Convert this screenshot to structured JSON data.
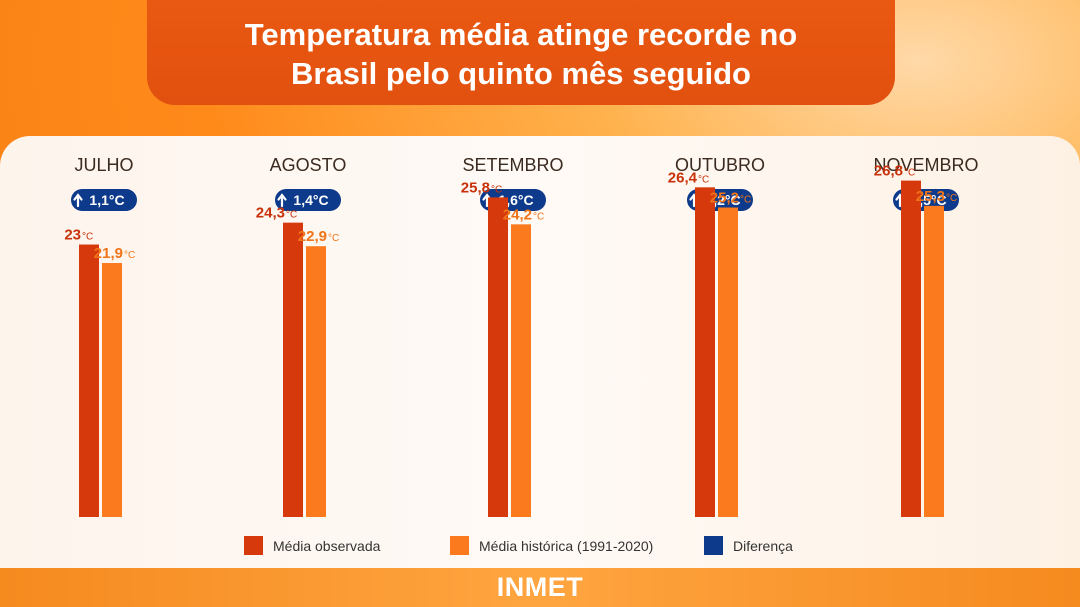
{
  "title": {
    "line1": "Temperatura média atinge recorde no",
    "line2": "Brasil pelo quinto mês seguido"
  },
  "source": "INMET",
  "legend": [
    {
      "label": "Média observada",
      "color": "#d63a0c"
    },
    {
      "label": "Média histórica (1991-2020)",
      "color": "#fb7a1e"
    },
    {
      "label": "Diferença",
      "color": "#0d3a8a"
    }
  ],
  "chart_data": {
    "type": "bar",
    "title": "Temperatura média atinge recorde no Brasil pelo quinto mês seguido",
    "categories": [
      "JULHO",
      "AGOSTO",
      "SETEMBRO",
      "OUTUBRO",
      "NOVEMBRO"
    ],
    "series": [
      {
        "name": "Média observada",
        "values": [
          23.0,
          24.3,
          25.8,
          26.4,
          26.8
        ],
        "labels": [
          "23",
          "24,3",
          "25,8",
          "26,4",
          "26,8"
        ],
        "color": "#d63a0c"
      },
      {
        "name": "Média histórica (1991-2020)",
        "values": [
          21.9,
          22.9,
          24.2,
          25.2,
          25.3
        ],
        "labels": [
          "21,9",
          "22,9",
          "24,2",
          "25,2",
          "25,3"
        ],
        "color": "#fb7a1e"
      }
    ],
    "differences": [
      {
        "value": 1.1,
        "label": "1,1°C"
      },
      {
        "value": 1.4,
        "label": "1,4°C"
      },
      {
        "value": 1.6,
        "label": "1,6°C"
      },
      {
        "value": 1.2,
        "label": "1,2°C"
      },
      {
        "value": 1.5,
        "label": "1,5°C"
      }
    ],
    "unit": "°C",
    "ylim": [
      0,
      30
    ],
    "grid": false,
    "legend_position": "bottom"
  }
}
